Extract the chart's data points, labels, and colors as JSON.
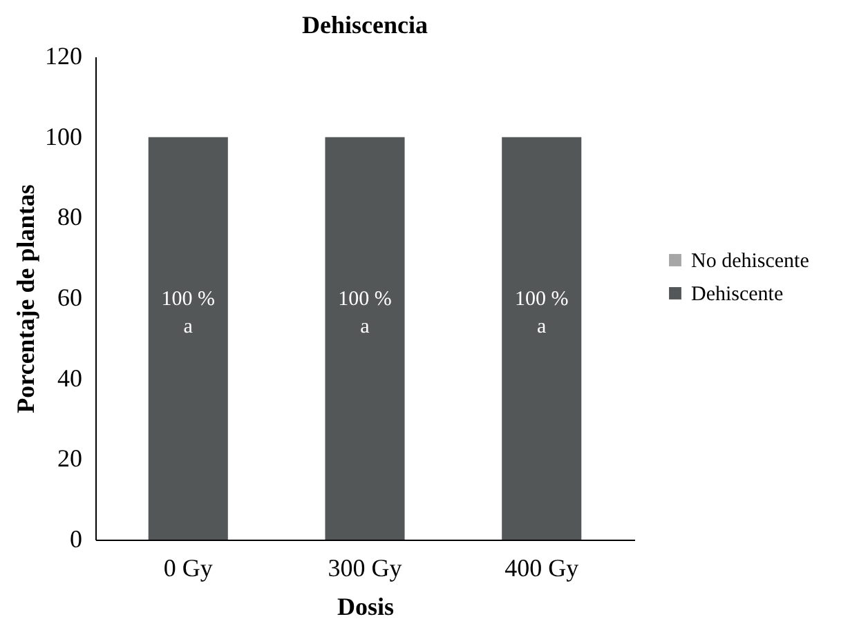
{
  "chart_data": {
    "type": "bar",
    "title": "Dehiscencia",
    "xlabel": "Dosis",
    "ylabel": "Porcentaje de plantas",
    "categories": [
      "0 Gy",
      "300 Gy",
      "400 Gy"
    ],
    "series": [
      {
        "name": "Dehiscente",
        "color": "#545758",
        "values": [
          100,
          100,
          100
        ],
        "value_labels": [
          "100 %",
          "100 %",
          "100 %"
        ]
      },
      {
        "name": "No dehiscente",
        "color": "#a6a6a6",
        "values": [
          0,
          0,
          0
        ]
      }
    ],
    "annotations": [
      "a",
      "a",
      "a"
    ],
    "ylim": [
      0,
      120
    ],
    "yticks": [
      0,
      20,
      40,
      60,
      80,
      100,
      120
    ],
    "grid": false,
    "legend": "right"
  }
}
